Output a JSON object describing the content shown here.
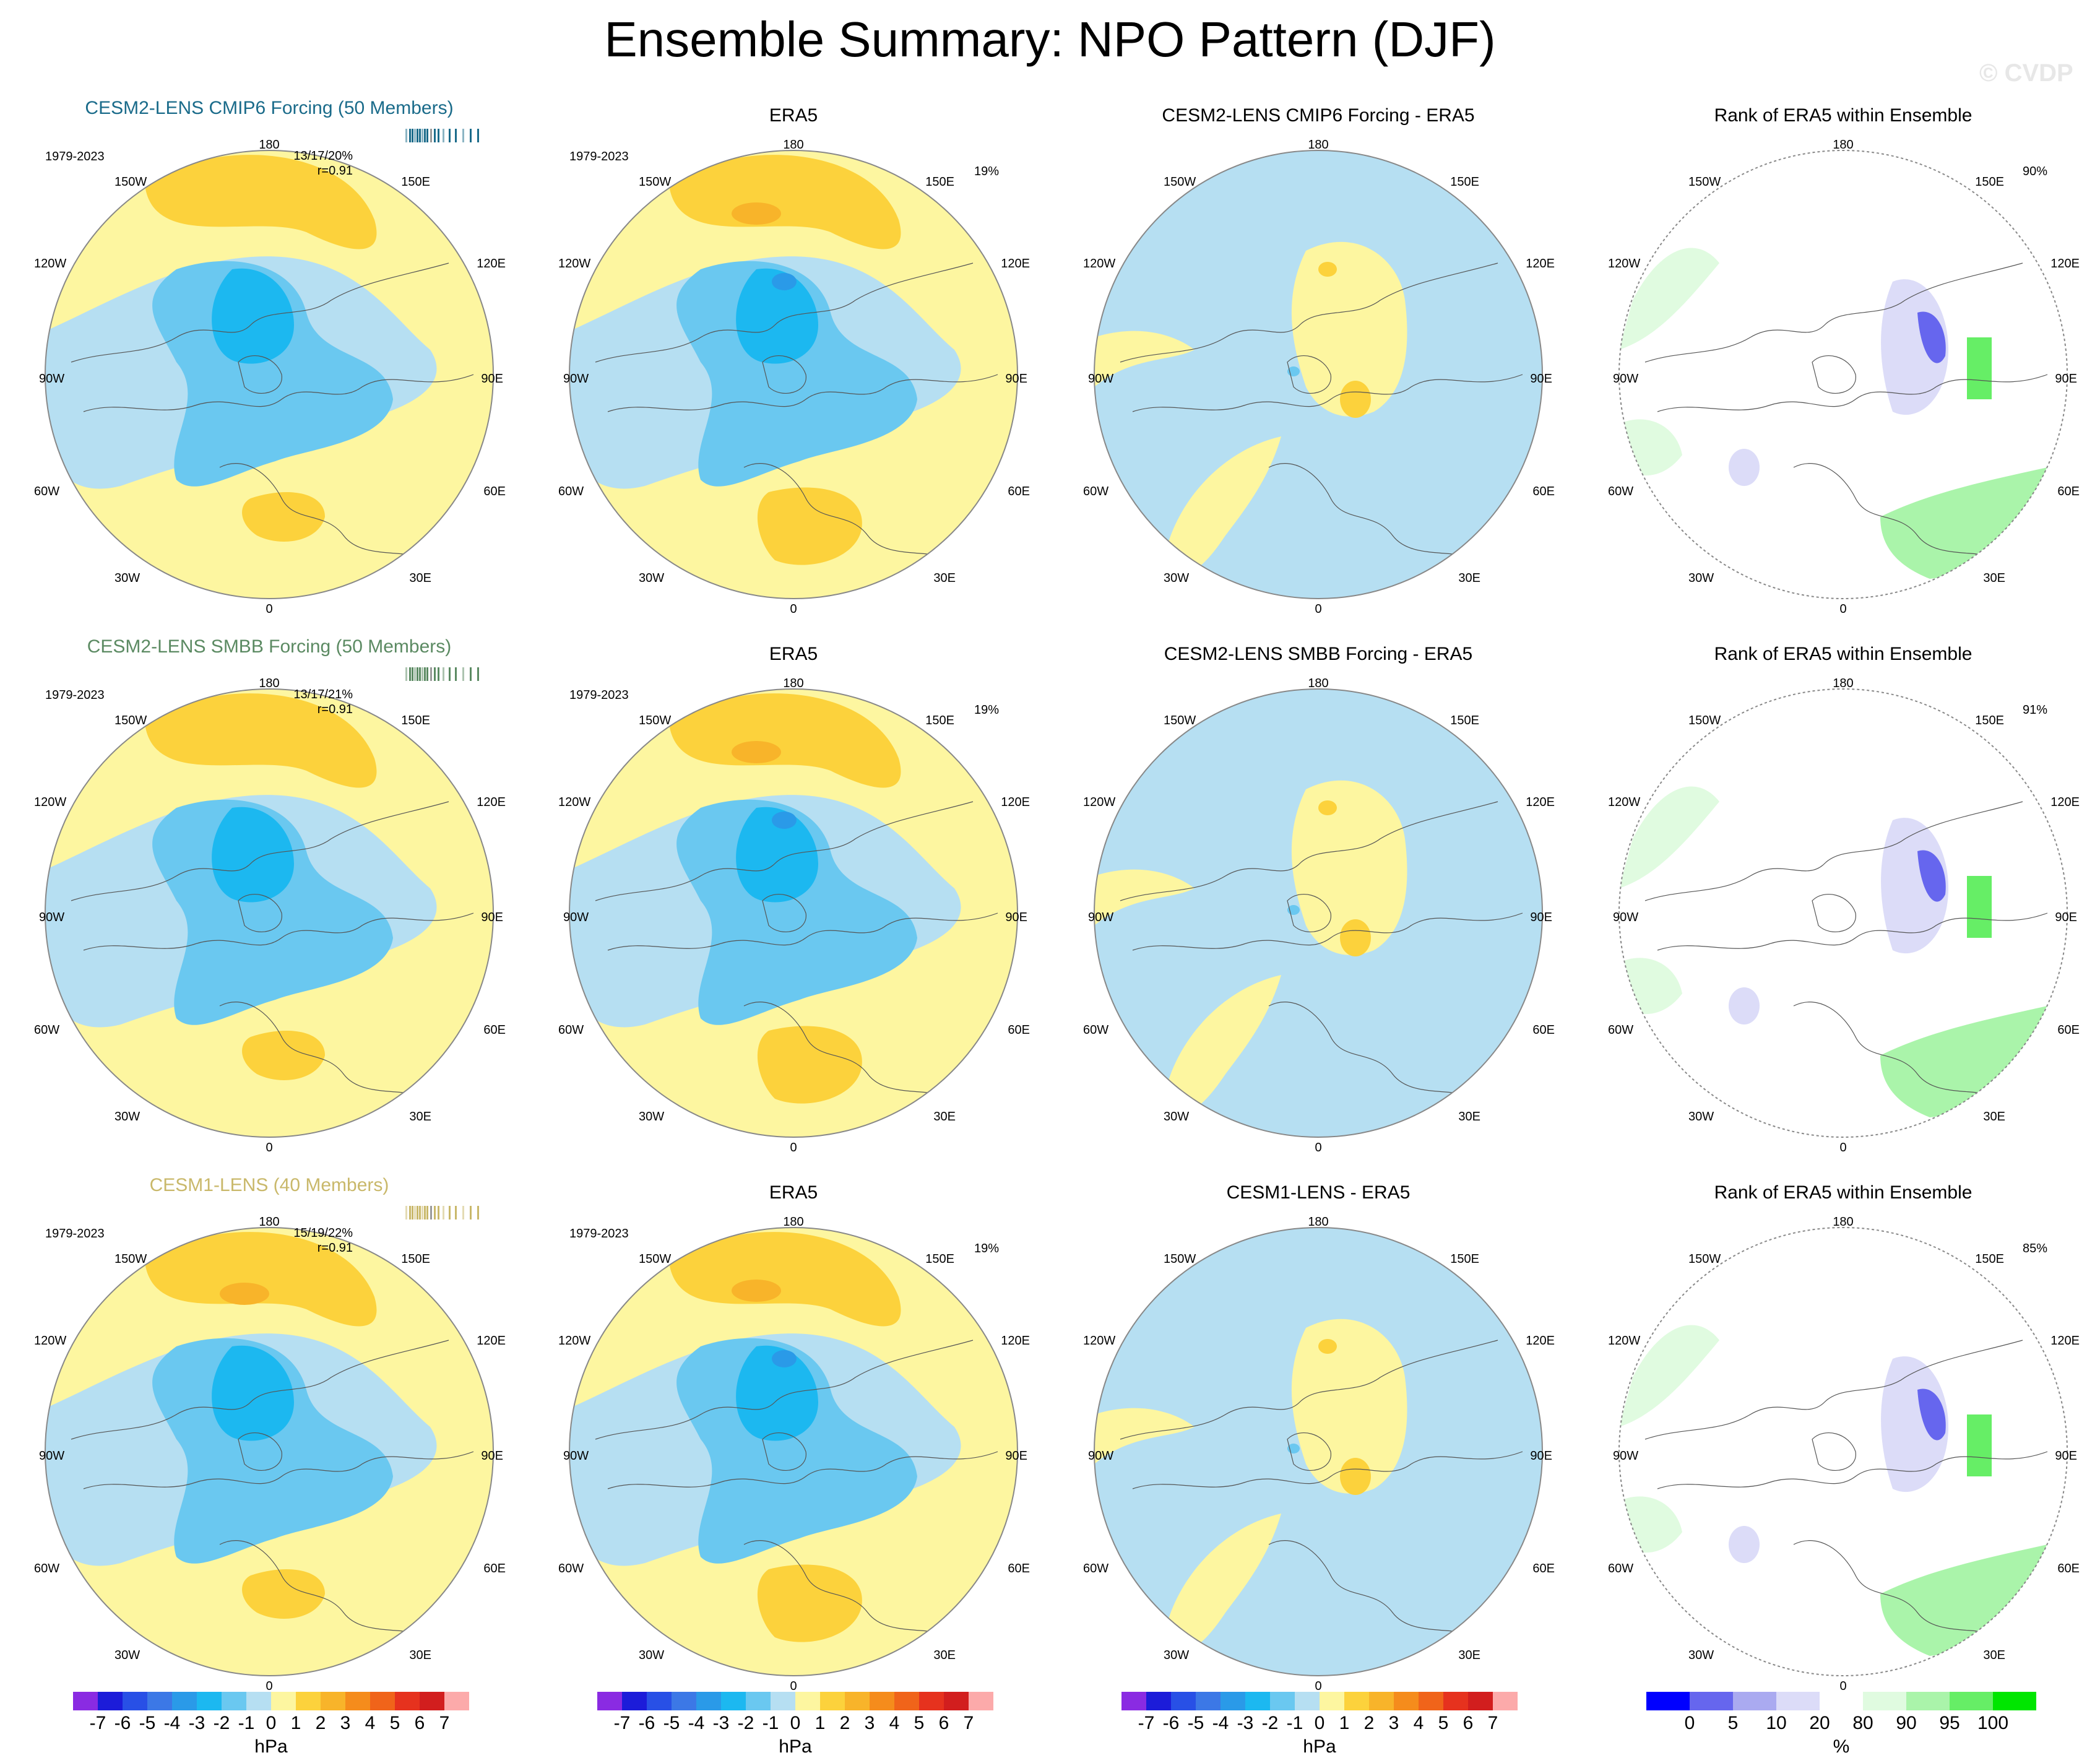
{
  "title": "Ensemble Summary: NPO Pattern (DJF)",
  "watermark": "© CVDP",
  "colors": {
    "model_title_1": "#1a6b8a",
    "model_title_2": "#5b8a62",
    "model_title_3": "#c9b86a",
    "ocean_blue": "#b6dff2",
    "pale_yellow": "#fdf6a0"
  },
  "lon_labels": {
    "top": "180",
    "bottom": "0",
    "ul1": "150W",
    "ul2": "120W",
    "left": "90W",
    "ll1": "60W",
    "ll2": "30W",
    "ur1": "150E",
    "ur2": "120E",
    "right": "90E",
    "lr1": "60E",
    "lr2": "30E"
  },
  "rows": [
    {
      "model_title": "CESM2-LENS CMIP6 Forcing (50 Members)",
      "period": "1979-2023",
      "stat_line1": "13/17/20%",
      "stat_line2": "r=0.91",
      "era_title": "ERA5",
      "era_period": "1979-2023",
      "era_pct": "19%",
      "diff_title": "CESM2-LENS CMIP6 Forcing - ERA5",
      "rank_title": "Rank of ERA5 within Ensemble",
      "rank_pct": "90%"
    },
    {
      "model_title": "CESM2-LENS SMBB Forcing (50 Members)",
      "period": "1979-2023",
      "stat_line1": "13/17/21%",
      "stat_line2": "r=0.91",
      "era_title": "ERA5",
      "era_period": "1979-2023",
      "era_pct": "19%",
      "diff_title": "CESM2-LENS SMBB Forcing - ERA5",
      "rank_title": "Rank of ERA5 within Ensemble",
      "rank_pct": "91%"
    },
    {
      "model_title": "CESM1-LENS (40 Members)",
      "period": "1979-2023",
      "stat_line1": "15/19/22%",
      "stat_line2": "r=0.91",
      "era_title": "ERA5",
      "era_period": "1979-2023",
      "era_pct": "19%",
      "diff_title": "CESM1-LENS - ERA5",
      "rank_title": "Rank of ERA5 within Ensemble",
      "rank_pct": "85%"
    }
  ],
  "colorbar_hpa": {
    "unit": "hPa",
    "ticks": [
      "-7",
      "-6",
      "-5",
      "-4",
      "-3",
      "-2",
      "-1",
      "0",
      "1",
      "2",
      "3",
      "4",
      "5",
      "6",
      "7"
    ],
    "colors": [
      "#8a2be2",
      "#1c1cd9",
      "#2850e6",
      "#3c78e6",
      "#2a9ae8",
      "#1cb8f0",
      "#6ac8f0",
      "#b6dff2",
      "#fdf6a0",
      "#fcd23c",
      "#f8b42a",
      "#f58c1c",
      "#f0641a",
      "#e6321e",
      "#d21e1e",
      "#fcaaaa"
    ]
  },
  "colorbar_rank": {
    "unit": "%",
    "ticks": [
      "0",
      "5",
      "10",
      "20",
      "80",
      "90",
      "95",
      "100"
    ],
    "colors": [
      "#0000ff",
      "#6666ee",
      "#aaaaf0",
      "#dcdcf8",
      "#ffffff",
      "#e0fbe0",
      "#aaf4aa",
      "#66ee66",
      "#00e600"
    ]
  }
}
